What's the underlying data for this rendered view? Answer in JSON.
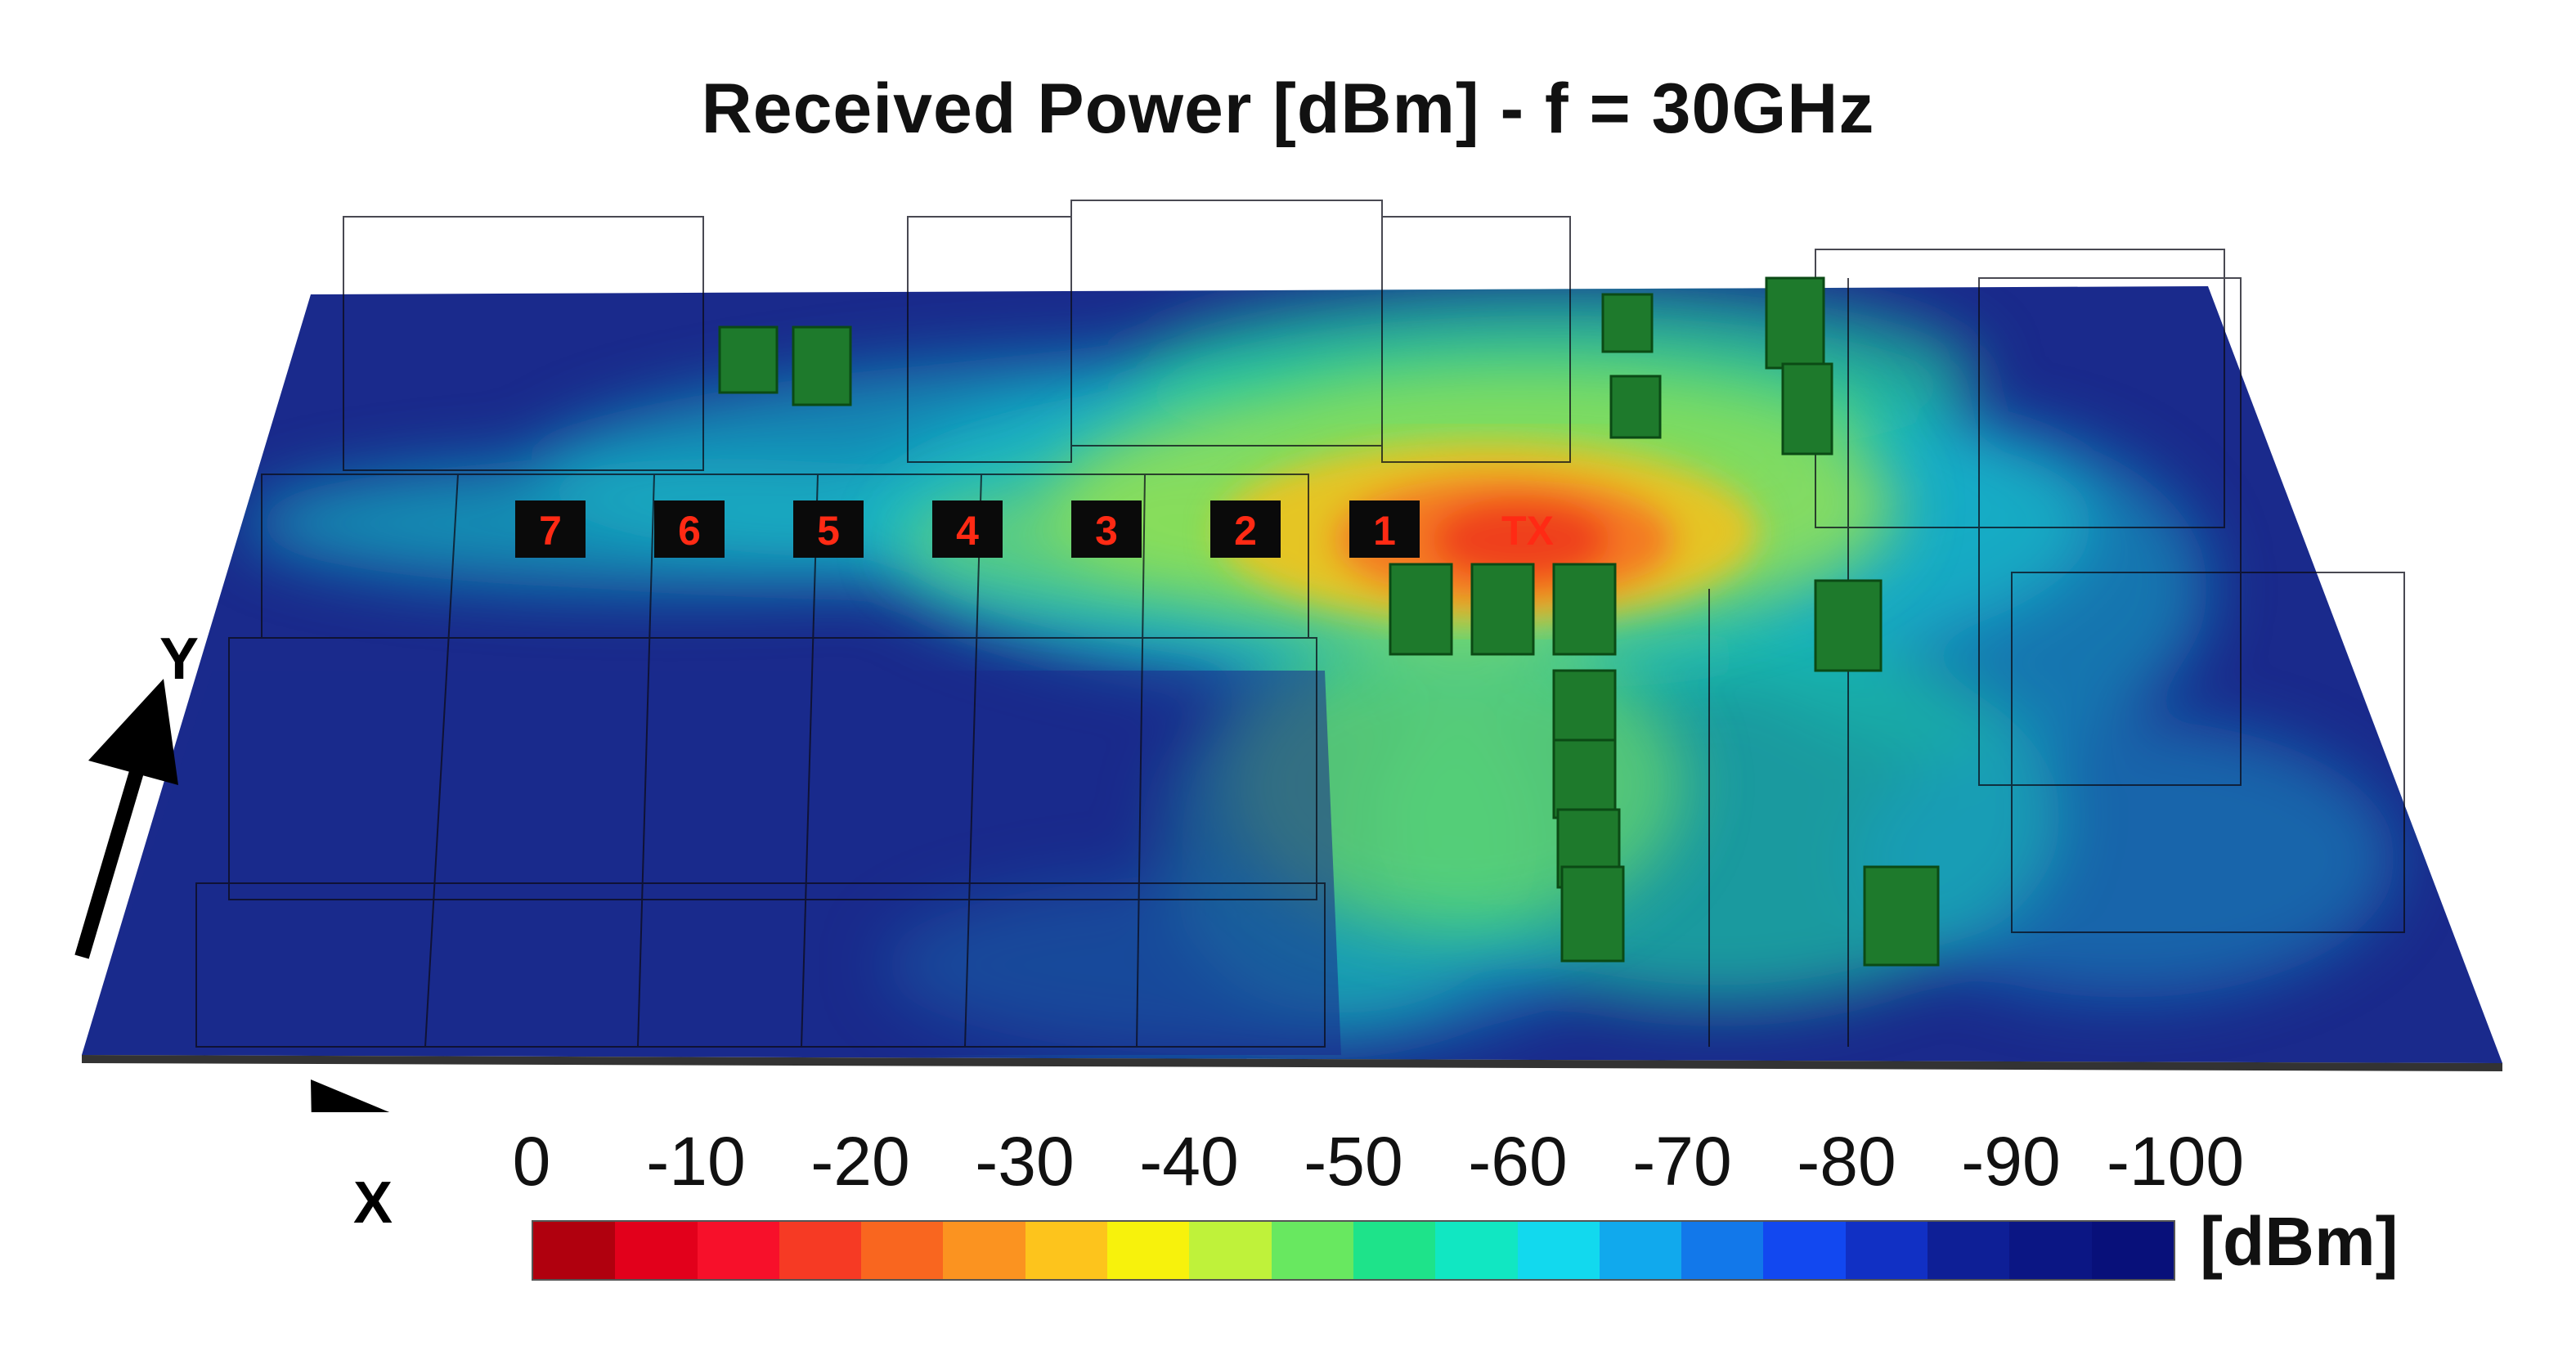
{
  "title": "Received Power [dBm] - f = 30GHz",
  "axes": {
    "x_label": "X",
    "y_label": "Y"
  },
  "markers": [
    {
      "label": "7",
      "col": 0
    },
    {
      "label": "6",
      "col": 1
    },
    {
      "label": "5",
      "col": 2
    },
    {
      "label": "4",
      "col": 3
    },
    {
      "label": "3",
      "col": 4
    },
    {
      "label": "2",
      "col": 5
    },
    {
      "label": "1",
      "col": 6
    },
    {
      "label": "TX",
      "col": 7
    }
  ],
  "colorbar": {
    "unit": "[dBm]",
    "ticks": [
      "0",
      "-10",
      "-20",
      "-30",
      "-40",
      "-50",
      "-60",
      "-70",
      "-80",
      "-90",
      "-100"
    ],
    "colors": [
      "#b0000e",
      "#e2001b",
      "#f7102a",
      "#f63a24",
      "#f9661f",
      "#fb9320",
      "#fdc41c",
      "#f7f20c",
      "#bff23a",
      "#68e860",
      "#1ee38a",
      "#11e7c2",
      "#12d9ee",
      "#11a9ed",
      "#1278ea",
      "#1248f0",
      "#1130c4",
      "#0e1f96",
      "#0b1684",
      "#08107a"
    ]
  }
}
